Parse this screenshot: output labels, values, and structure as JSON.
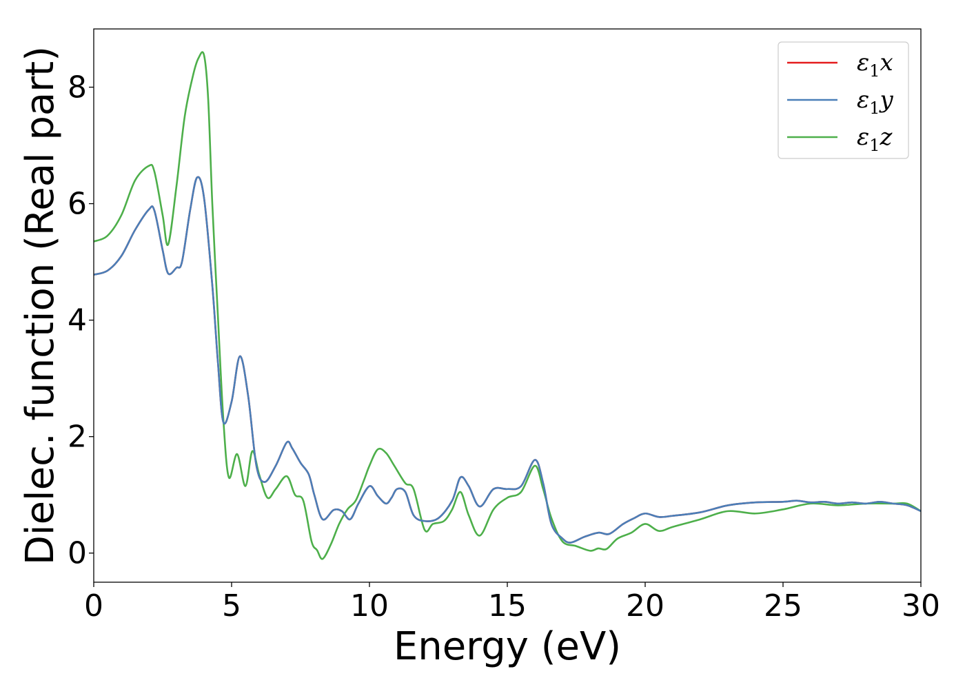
{
  "chart_data": {
    "type": "line",
    "xlabel": "Energy (eV)",
    "ylabel": "Dielec. function (Real part)",
    "xlim": [
      0,
      30
    ],
    "ylim": [
      -0.5,
      9.0
    ],
    "xticks": [
      0,
      5,
      10,
      15,
      20,
      25,
      30
    ],
    "yticks": [
      0,
      2,
      4,
      6,
      8
    ],
    "grid": false,
    "legend_position": "top-right",
    "series": [
      {
        "name": "ε1x",
        "symbol": "ε",
        "subscript": "1",
        "suffix": "x",
        "color": "#e41a1c",
        "x": [
          0,
          0.5,
          1.0,
          1.5,
          2.0,
          2.2,
          2.5,
          2.7,
          3.0,
          3.2,
          3.5,
          3.75,
          4.0,
          4.3,
          4.5,
          4.7,
          5.0,
          5.3,
          5.6,
          5.9,
          6.2,
          6.6,
          7.0,
          7.2,
          7.5,
          7.8,
          8.0,
          8.3,
          8.7,
          9.0,
          9.3,
          9.6,
          10.0,
          10.3,
          10.6,
          10.8,
          11.0,
          11.3,
          11.6,
          12.0,
          12.5,
          13.0,
          13.3,
          13.6,
          14.0,
          14.5,
          15.0,
          15.5,
          16.0,
          16.3,
          16.6,
          17.0,
          17.3,
          17.8,
          18.3,
          18.7,
          19.2,
          19.6,
          20.0,
          20.5,
          21.0,
          22.0,
          23.0,
          24.0,
          25.0,
          25.5,
          26.0,
          26.5,
          27.0,
          27.5,
          28.0,
          28.5,
          29.0,
          29.5,
          30.0
        ],
        "y": [
          4.78,
          4.85,
          5.1,
          5.55,
          5.9,
          5.88,
          5.2,
          4.8,
          4.9,
          5.0,
          5.9,
          6.45,
          6.1,
          4.6,
          3.3,
          2.25,
          2.6,
          3.38,
          2.7,
          1.5,
          1.22,
          1.5,
          1.9,
          1.8,
          1.55,
          1.35,
          1.0,
          0.58,
          0.74,
          0.72,
          0.58,
          0.85,
          1.15,
          0.98,
          0.85,
          0.95,
          1.1,
          1.05,
          0.65,
          0.55,
          0.6,
          0.9,
          1.3,
          1.15,
          0.8,
          1.1,
          1.1,
          1.15,
          1.6,
          1.2,
          0.5,
          0.25,
          0.18,
          0.28,
          0.35,
          0.33,
          0.5,
          0.6,
          0.68,
          0.62,
          0.64,
          0.7,
          0.82,
          0.87,
          0.88,
          0.9,
          0.87,
          0.88,
          0.85,
          0.87,
          0.85,
          0.88,
          0.85,
          0.82,
          0.72
        ]
      },
      {
        "name": "ε1y",
        "symbol": "ε",
        "subscript": "1",
        "suffix": "y",
        "color": "#4a7fb8",
        "x": [
          0,
          0.5,
          1.0,
          1.5,
          2.0,
          2.2,
          2.5,
          2.7,
          3.0,
          3.2,
          3.5,
          3.75,
          4.0,
          4.3,
          4.5,
          4.7,
          5.0,
          5.3,
          5.6,
          5.9,
          6.2,
          6.6,
          7.0,
          7.2,
          7.5,
          7.8,
          8.0,
          8.3,
          8.7,
          9.0,
          9.3,
          9.6,
          10.0,
          10.3,
          10.6,
          10.8,
          11.0,
          11.3,
          11.6,
          12.0,
          12.5,
          13.0,
          13.3,
          13.6,
          14.0,
          14.5,
          15.0,
          15.5,
          16.0,
          16.3,
          16.6,
          17.0,
          17.3,
          17.8,
          18.3,
          18.7,
          19.2,
          19.6,
          20.0,
          20.5,
          21.0,
          22.0,
          23.0,
          24.0,
          25.0,
          25.5,
          26.0,
          26.5,
          27.0,
          27.5,
          28.0,
          28.5,
          29.0,
          29.5,
          30.0
        ],
        "y": [
          4.78,
          4.85,
          5.1,
          5.55,
          5.9,
          5.88,
          5.2,
          4.8,
          4.9,
          5.0,
          5.9,
          6.45,
          6.1,
          4.6,
          3.3,
          2.25,
          2.6,
          3.38,
          2.7,
          1.5,
          1.22,
          1.5,
          1.9,
          1.8,
          1.55,
          1.35,
          1.0,
          0.58,
          0.74,
          0.72,
          0.58,
          0.85,
          1.15,
          0.98,
          0.85,
          0.95,
          1.1,
          1.05,
          0.65,
          0.55,
          0.6,
          0.9,
          1.3,
          1.15,
          0.8,
          1.1,
          1.1,
          1.15,
          1.6,
          1.2,
          0.5,
          0.25,
          0.18,
          0.28,
          0.35,
          0.33,
          0.5,
          0.6,
          0.68,
          0.62,
          0.64,
          0.7,
          0.82,
          0.87,
          0.88,
          0.9,
          0.87,
          0.88,
          0.85,
          0.87,
          0.85,
          0.88,
          0.85,
          0.82,
          0.72
        ]
      },
      {
        "name": "ε1z",
        "symbol": "ε",
        "subscript": "1",
        "suffix": "z",
        "color": "#4daf4a",
        "x": [
          0,
          0.5,
          1.0,
          1.5,
          2.0,
          2.2,
          2.5,
          2.7,
          3.0,
          3.3,
          3.6,
          3.8,
          4.0,
          4.15,
          4.3,
          4.5,
          4.7,
          4.9,
          5.2,
          5.5,
          5.75,
          6.0,
          6.3,
          6.6,
          7.0,
          7.3,
          7.6,
          7.9,
          8.1,
          8.3,
          8.6,
          8.9,
          9.2,
          9.5,
          9.8,
          10.0,
          10.3,
          10.6,
          10.9,
          11.3,
          11.6,
          12.0,
          12.3,
          12.7,
          13.0,
          13.3,
          13.6,
          14.0,
          14.5,
          15.0,
          15.5,
          16.0,
          16.3,
          16.6,
          17.0,
          17.5,
          18.0,
          18.3,
          18.6,
          19.0,
          19.5,
          20.0,
          20.5,
          21.0,
          22.0,
          23.0,
          24.0,
          25.0,
          26.0,
          27.0,
          28.0,
          29.0,
          29.5,
          30.0
        ],
        "y": [
          5.35,
          5.45,
          5.8,
          6.4,
          6.65,
          6.55,
          5.8,
          5.3,
          6.3,
          7.5,
          8.2,
          8.5,
          8.55,
          7.8,
          6.0,
          4.1,
          2.3,
          1.3,
          1.7,
          1.15,
          1.75,
          1.35,
          0.95,
          1.1,
          1.32,
          1.0,
          0.9,
          0.2,
          0.05,
          -0.1,
          0.15,
          0.5,
          0.75,
          0.9,
          1.25,
          1.5,
          1.78,
          1.72,
          1.5,
          1.2,
          1.1,
          0.4,
          0.5,
          0.55,
          0.75,
          1.05,
          0.65,
          0.3,
          0.75,
          0.95,
          1.05,
          1.5,
          1.1,
          0.6,
          0.2,
          0.12,
          0.04,
          0.08,
          0.07,
          0.25,
          0.35,
          0.5,
          0.38,
          0.45,
          0.58,
          0.72,
          0.68,
          0.75,
          0.85,
          0.82,
          0.85,
          0.85,
          0.85,
          0.72
        ]
      }
    ]
  }
}
